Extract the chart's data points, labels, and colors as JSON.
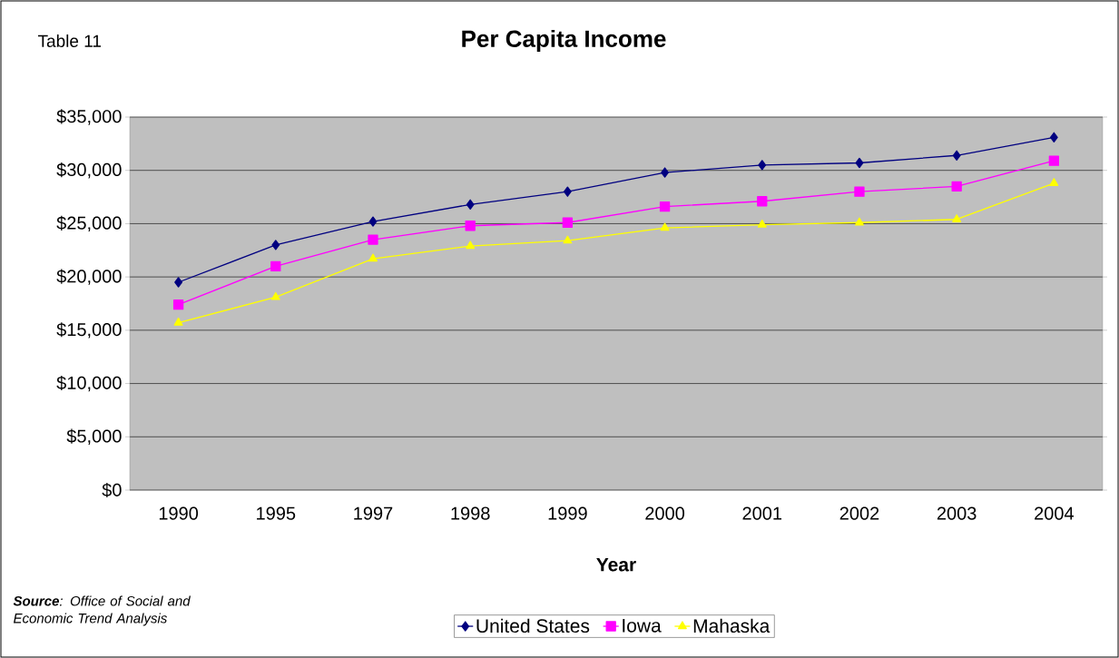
{
  "chart_data": {
    "type": "line",
    "title": "Per Capita Income",
    "xlabel": "Year",
    "annotations": [
      "Table 11",
      "**Source**: Office of Social and Economic Trend Analysis"
    ],
    "categories": [
      "1990",
      "1995",
      "1997",
      "1998",
      "1999",
      "2000",
      "2001",
      "2002",
      "2003",
      "2004"
    ],
    "series": [
      {
        "name": "United States",
        "color": "#000080",
        "marker": "diamond",
        "values": [
          19500,
          23000,
          25200,
          26800,
          28000,
          29800,
          30500,
          30700,
          31400,
          33100
        ]
      },
      {
        "name": "Iowa",
        "color": "#ff00ff",
        "marker": "square",
        "values": [
          17400,
          21000,
          23500,
          24800,
          25100,
          26600,
          27100,
          28000,
          28500,
          30900
        ]
      },
      {
        "name": "Mahaska",
        "color": "#ffff00",
        "marker": "triangle",
        "values": [
          15700,
          18100,
          21700,
          22900,
          23400,
          24600,
          24900,
          25100,
          25400,
          28800
        ]
      }
    ],
    "ylim": [
      0,
      35000
    ],
    "yticks": [
      {
        "value": 0,
        "label": "$0"
      },
      {
        "value": 5000,
        "label": "$5,000"
      },
      {
        "value": 10000,
        "label": "$10,000"
      },
      {
        "value": 15000,
        "label": "$15,000"
      },
      {
        "value": 20000,
        "label": "$20,000"
      },
      {
        "value": 25000,
        "label": "$25,000"
      },
      {
        "value": 30000,
        "label": "$30,000"
      },
      {
        "value": 35000,
        "label": "$35,000"
      }
    ],
    "grid": "y",
    "legend": "bottom",
    "line_style": "solid"
  }
}
